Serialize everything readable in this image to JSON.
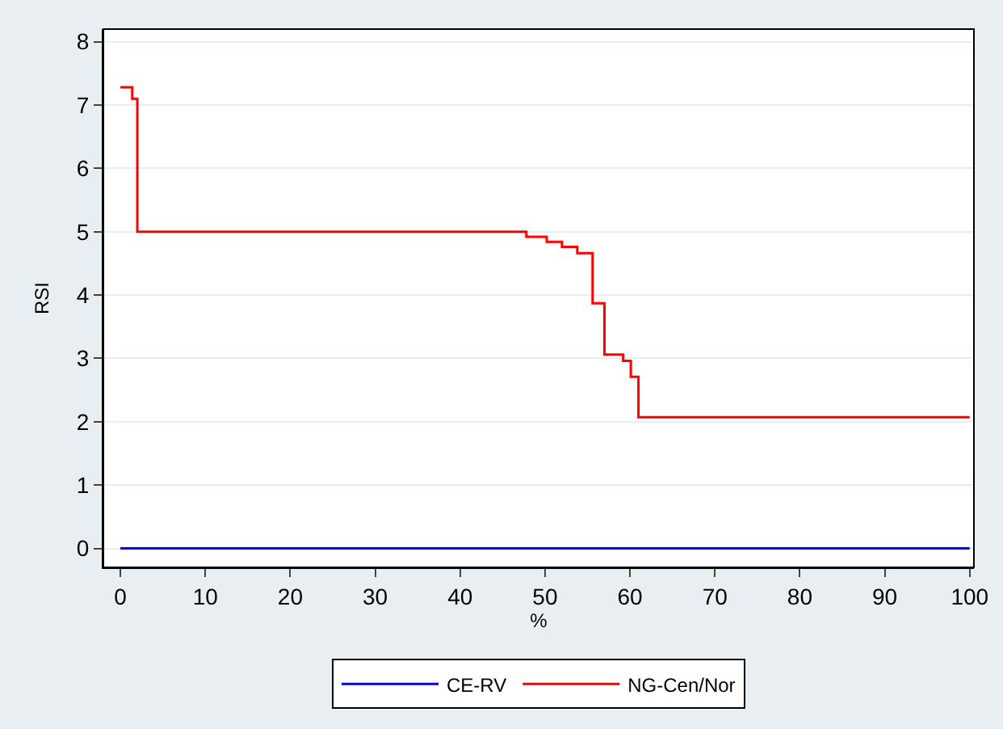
{
  "chart_data": {
    "type": "step",
    "xlabel": "%",
    "ylabel": "RSI",
    "xlim": [
      -2,
      100.5
    ],
    "ylim": [
      -0.3,
      8.2
    ],
    "xticks": [
      0,
      10,
      20,
      30,
      40,
      50,
      60,
      70,
      80,
      90,
      100
    ],
    "yticks": [
      0,
      1,
      2,
      3,
      4,
      5,
      6,
      7,
      8
    ],
    "grid": "y",
    "legend": "bottom",
    "marker": "none",
    "line_style": "solid",
    "series": [
      {
        "name": "CE-RV",
        "color": "#0000ff",
        "x": [
          0,
          100
        ],
        "values": [
          0,
          0
        ]
      },
      {
        "name": "NG-Cen/Nor",
        "color": "#ff0000",
        "x": [
          0,
          1.4,
          2.0,
          47.8,
          50.2,
          52.0,
          53.8,
          55.6,
          57.0,
          59.2,
          60.1,
          61.0,
          100
        ],
        "values": [
          7.28,
          7.1,
          5.0,
          4.92,
          4.84,
          4.76,
          4.66,
          3.87,
          3.06,
          2.96,
          2.71,
          2.07,
          2.07
        ]
      }
    ]
  }
}
